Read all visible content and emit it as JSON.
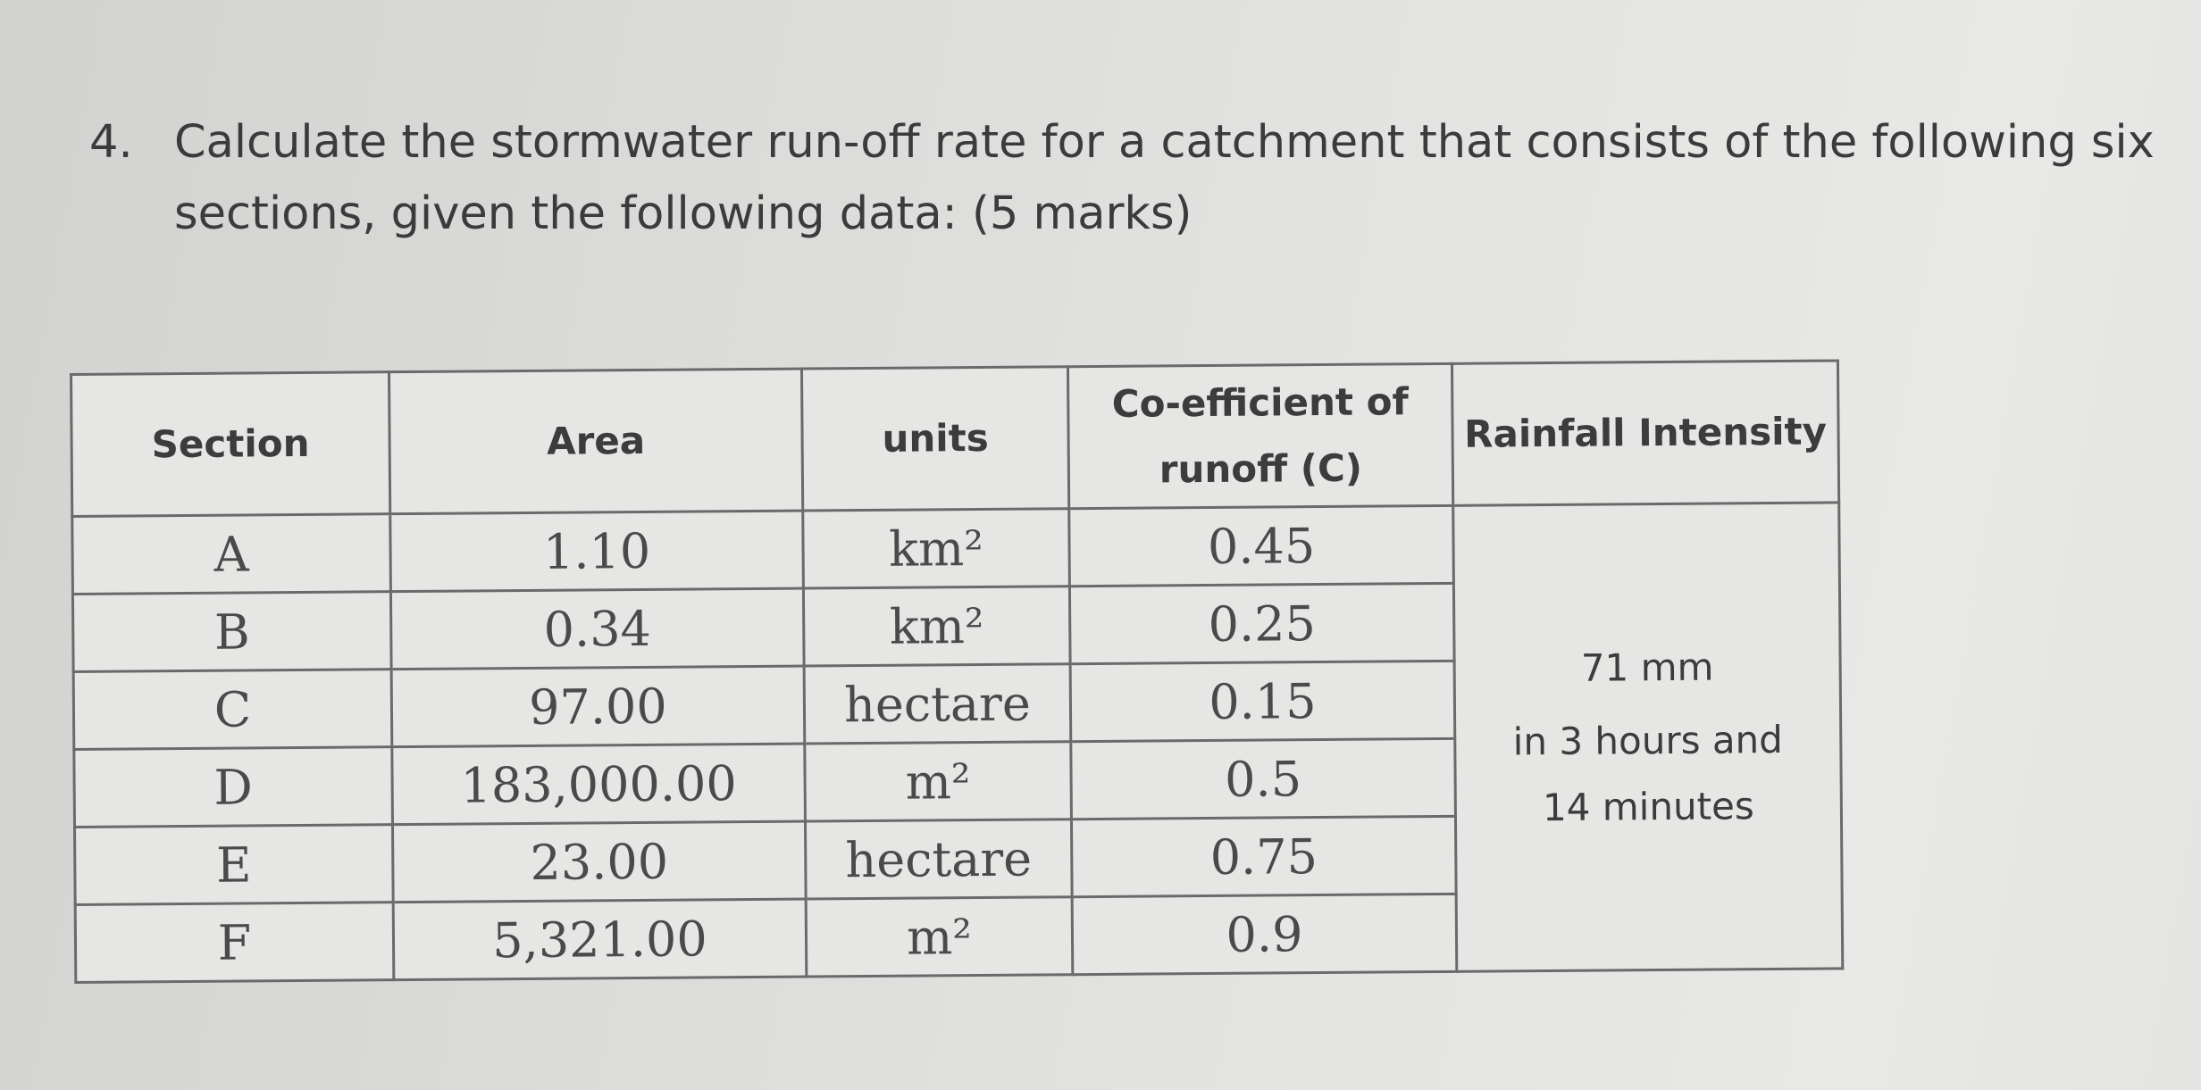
{
  "question": {
    "number": "4.",
    "text": "Calculate the stormwater run-off rate for a catchment that consists of the following six sections, given the following data: (5 marks)"
  },
  "table": {
    "headers": {
      "section": "Section",
      "area": "Area",
      "units": "units",
      "coefficient": "Co-efficient of runoff (C)",
      "rainfall": "Rainfall Intensity"
    },
    "rows": [
      {
        "section": "A",
        "area": "1.10",
        "units": "km²",
        "coefficient": "0.45"
      },
      {
        "section": "B",
        "area": "0.34",
        "units": "km²",
        "coefficient": "0.25"
      },
      {
        "section": "C",
        "area": "97.00",
        "units": "hectare",
        "coefficient": "0.15"
      },
      {
        "section": "D",
        "area": "183,000.00",
        "units": "m²",
        "coefficient": "0.5"
      },
      {
        "section": "E",
        "area": "23.00",
        "units": "hectare",
        "coefficient": "0.75"
      },
      {
        "section": "F",
        "area": "5,321.00",
        "units": "m²",
        "coefficient": "0.9"
      }
    ],
    "rainfall": {
      "amount": "71 mm",
      "duration_line1": "in 3 hours and",
      "duration_line2": "14 minutes"
    }
  }
}
